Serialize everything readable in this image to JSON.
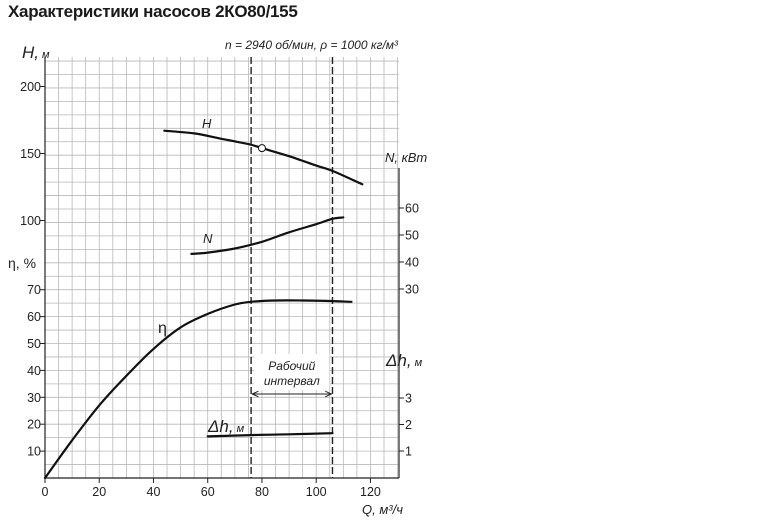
{
  "title": "Характеристики насосов 2КО80/155",
  "conditions": "n = 2940 об/мин, ρ = 1000 кг/м³",
  "chart_data": {
    "type": "line",
    "title": "Характеристики насосов 2КО80/155",
    "x_label": "Q, м³/ч",
    "x_ticks": [
      "0",
      "20",
      "40",
      "60",
      "80",
      "100",
      "120"
    ],
    "xlim": [
      0,
      130
    ],
    "grid": true,
    "axes": {
      "H": {
        "label": "H, м",
        "ticks": [
          "100",
          "150",
          "200"
        ]
      },
      "eta": {
        "label": "η, %",
        "ticks": [
          "10",
          "20",
          "30",
          "40",
          "50",
          "60",
          "70"
        ]
      },
      "N": {
        "label": "N, кВт",
        "ticks": [
          "30",
          "40",
          "50",
          "60"
        ]
      },
      "dh": {
        "label": "Δh, м",
        "ticks": [
          "1",
          "2",
          "3"
        ]
      }
    },
    "series": [
      {
        "name": "H",
        "axis": "H",
        "x": [
          44,
          55,
          65,
          75,
          80,
          90,
          100,
          106,
          117
        ],
        "y": [
          167,
          165,
          161,
          157,
          154,
          148,
          141,
          137,
          127
        ]
      },
      {
        "name": "N",
        "axis": "N",
        "x": [
          54,
          60,
          70,
          80,
          90,
          100,
          106,
          110
        ],
        "y": [
          43,
          43.5,
          45,
          47.5,
          51,
          54,
          56,
          56.5
        ]
      },
      {
        "name": "η",
        "axis": "eta",
        "x": [
          0,
          10,
          20,
          30,
          40,
          50,
          60,
          70,
          76,
          85,
          95,
          105,
          113
        ],
        "y": [
          0,
          14,
          27,
          38,
          48,
          56,
          61,
          64.5,
          65.5,
          66,
          66,
          65.8,
          65.5
        ]
      },
      {
        "name": "Δh, м",
        "axis": "dh",
        "x": [
          60,
          76,
          90,
          106
        ],
        "y": [
          1.55,
          1.6,
          1.63,
          1.67
        ]
      }
    ],
    "marker": {
      "series": "H",
      "x": 80,
      "y": 154
    },
    "working_range": {
      "x_start": 76,
      "x_end": 106,
      "label_line1": "Рабочий",
      "label_line2": "интервал"
    }
  }
}
